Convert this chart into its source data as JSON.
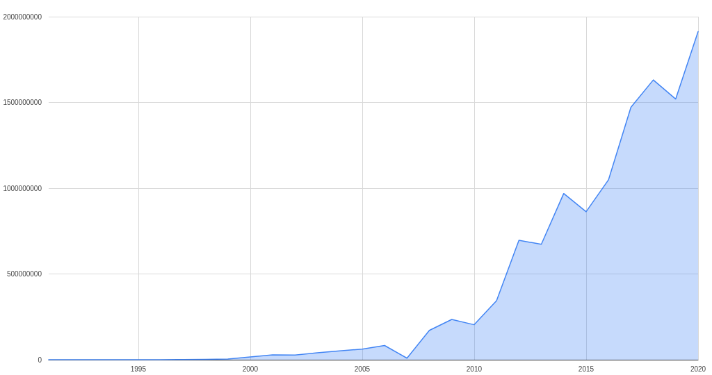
{
  "chart_data": {
    "type": "area",
    "x": [
      1991,
      1992,
      1993,
      1994,
      1995,
      1996,
      1997,
      1998,
      1999,
      2000,
      2001,
      2002,
      2003,
      2004,
      2005,
      2006,
      2007,
      2008,
      2009,
      2010,
      2011,
      2012,
      2013,
      2014,
      2015,
      2016,
      2017,
      2018,
      2019,
      2020
    ],
    "series": [
      {
        "color": "#4285f4",
        "values": [
          0,
          0,
          0,
          0,
          0,
          0,
          1000000,
          2000000,
          4000000,
          16000000,
          28000000,
          27000000,
          40000000,
          52000000,
          62000000,
          83000000,
          9000000,
          171000000,
          235000000,
          204000000,
          344000000,
          696000000,
          673000000,
          969000000,
          863000000,
          1049000000,
          1472000000,
          1631000000,
          1520000000,
          1913000000
        ]
      }
    ],
    "xlim": [
      1991,
      2020
    ],
    "xticks": [
      1995,
      2000,
      2005,
      2010,
      2015,
      2020
    ],
    "ylim": [
      0,
      2000000000
    ],
    "yticks": [
      0,
      500000000,
      1000000000,
      1500000000,
      2000000000
    ],
    "grid": true,
    "marker": "none",
    "line_style": "solid"
  }
}
